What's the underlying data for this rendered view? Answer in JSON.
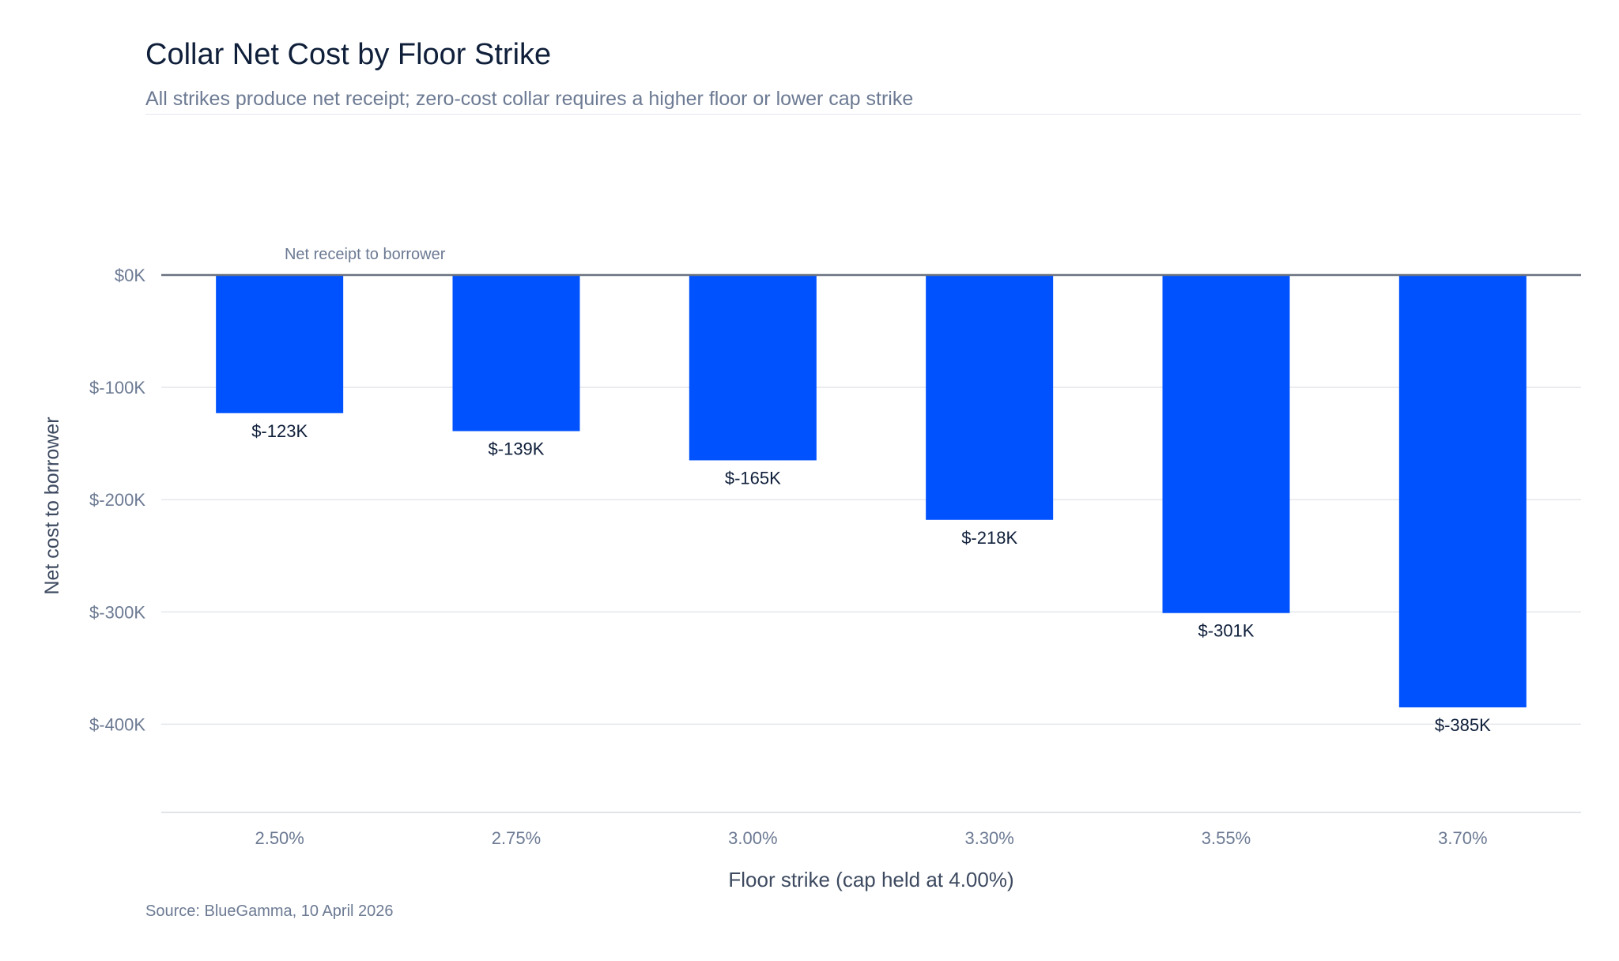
{
  "header": {
    "title": "Collar Net Cost by Floor Strike",
    "subtitle": "All strikes produce net receipt; zero-cost collar requires a higher floor or lower cap strike"
  },
  "footer": {
    "source": "Source: BlueGamma, 10 April 2026"
  },
  "chart_data": {
    "type": "bar",
    "title": "Collar Net Cost by Floor Strike",
    "subtitle": "All strikes produce net receipt; zero-cost collar requires a higher floor or lower cap strike",
    "xlabel": "Floor strike (cap held at 4.00%)",
    "ylabel": "Net cost to borrower",
    "categories": [
      "2.50%",
      "2.75%",
      "3.00%",
      "3.30%",
      "3.55%",
      "3.70%"
    ],
    "values": [
      -123,
      -139,
      -165,
      -218,
      -301,
      -385
    ],
    "value_unit": "thousand USD",
    "data_labels": [
      "$-123K",
      "$-139K",
      "$-165K",
      "$-218K",
      "$-301K",
      "$-385K"
    ],
    "yticks": [
      0,
      -100,
      -200,
      -300,
      -400
    ],
    "ytick_labels": [
      "$0K",
      "$-100K",
      "$-200K",
      "$-300K",
      "$-400K"
    ],
    "ylim": [
      -480,
      0
    ],
    "annotation": "Net receipt to borrower",
    "grid": true,
    "legend": "none",
    "bar_color": "#0052ff",
    "zero_line_color": "#6b7280",
    "grid_color": "#e5e7eb",
    "axis_color": "#d7dbe2",
    "text_color": "#6c7a93",
    "label_color": "#0f1f3a"
  }
}
